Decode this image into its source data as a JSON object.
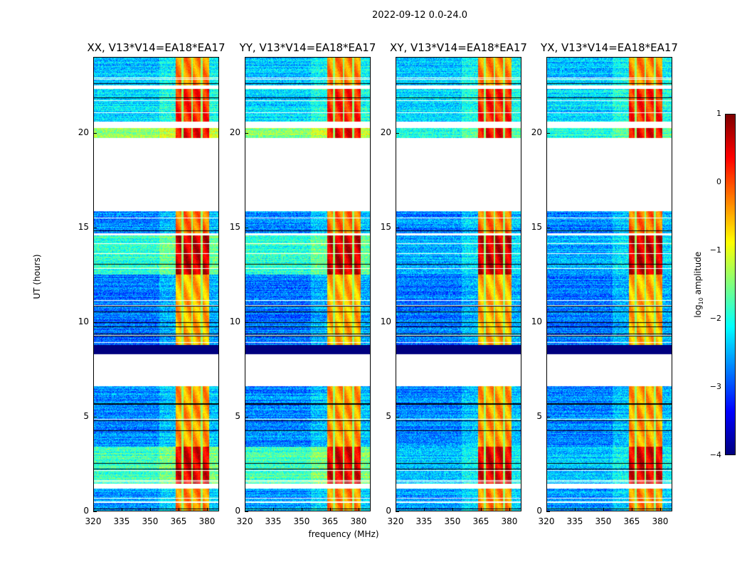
{
  "chart_data": {
    "type": "heatmap",
    "title": "2022-09-12 0.0-24.0",
    "xlabel": "frequency (MHz)",
    "ylabel": "UT (hours)",
    "xlim": [
      320,
      386.4
    ],
    "ylim": [
      0,
      24
    ],
    "xticks": [
      "320",
      "335",
      "350",
      "365",
      "380"
    ],
    "xtick_values": [
      320,
      335,
      350,
      365,
      380
    ],
    "yticks": [
      "0",
      "5",
      "10",
      "15",
      "20"
    ],
    "ytick_values": [
      0,
      5,
      10,
      15,
      20
    ],
    "colormap": "jet",
    "colorbar": {
      "label": "log10 amplitude",
      "label_base": "log",
      "label_sub": "10",
      "label_rest": " amplitude",
      "range": [
        -4,
        1
      ],
      "ticks": [
        "1",
        "0",
        "−1",
        "−2",
        "−3",
        "−4"
      ],
      "tick_values": [
        1,
        0,
        -1,
        -2,
        -3,
        -4
      ]
    },
    "bright_band_mhz": [
      363.5,
      381
    ],
    "band_gaps_mhz": [
      367.2,
      372.2,
      377.2
    ],
    "panels": [
      {
        "title": "XX, V13*V14=EA18*EA17",
        "low_offset": 0.6
      },
      {
        "title": "YY, V13*V14=EA18*EA17",
        "low_offset": 0.6
      },
      {
        "title": "XY, V13*V14=EA18*EA17",
        "low_offset": 0
      },
      {
        "title": "YX, V13*V14=EA18*EA17",
        "low_offset": 0
      }
    ],
    "time_blocks": [
      {
        "ut": [
          0,
          1.2
        ],
        "low": -2.6,
        "high": -0.3
      },
      {
        "ut": [
          1.45,
          3.4
        ],
        "low": -2.4,
        "high": 0.5
      },
      {
        "ut": [
          3.4,
          6.6
        ],
        "low": -2.7,
        "high": -0.4
      },
      {
        "ut": [
          8.3,
          8.8
        ],
        "low": -9,
        "high": -9
      },
      {
        "ut": [
          8.8,
          12.5
        ],
        "low": -2.8,
        "high": -0.5
      },
      {
        "ut": [
          12.5,
          14.6
        ],
        "low": -2.5,
        "high": 0.6
      },
      {
        "ut": [
          14.6,
          15.85
        ],
        "low": -2.7,
        "high": -0.2
      },
      {
        "ut": [
          19.7,
          20.25
        ],
        "low": -2.0,
        "high": 0.4
      },
      {
        "ut": [
          20.6,
          22.3
        ],
        "low": -2.3,
        "high": 0.2
      },
      {
        "ut": [
          22.5,
          24
        ],
        "low": -2.4,
        "high": -0.3
      }
    ]
  }
}
